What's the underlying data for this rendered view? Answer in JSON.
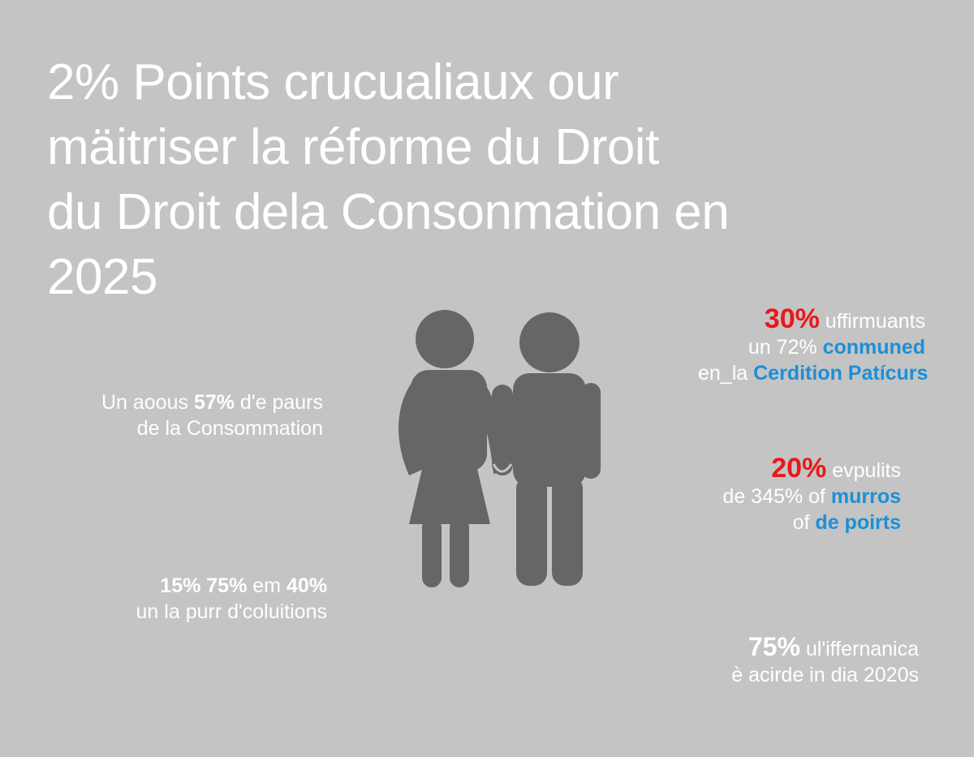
{
  "title": {
    "line1": "2% Points crucualiaux our",
    "line2": "mäitriser la réforme du Droit",
    "line3": "du Droit dela Consonmation en",
    "line4": "2025"
  },
  "stats": {
    "left1": {
      "pre": "Un aoous ",
      "bold": "57%",
      "post": " d'e paurs",
      "line2": "de la Consommation"
    },
    "left2": {
      "bold": "15% 75%",
      "post": " em ",
      "bold2": "40%",
      "line2": "un la purr d'coluitions"
    },
    "right1": {
      "red": "30%",
      "red_post": " uffirmuants",
      "l2_pre": "un 72% ",
      "l2_blue": "conmuned",
      "l3_pre": "en_la ",
      "l3_blue": "Cerdition Patícurs"
    },
    "right2": {
      "red": "20%",
      "red_post": " evpulits",
      "l2_pre": "de 345% ",
      "l2_mid": "of ",
      "l2_blue": "murros",
      "l3_pre": "of ",
      "l3_blue": "de poirts"
    },
    "right3": {
      "bold": "75%",
      "post": " ul'iffernanica",
      "line2": "è acirde in dia 2020s"
    }
  },
  "colors": {
    "background": "#c4c4c4",
    "text": "#ffffff",
    "accent_red": "#e8181c",
    "accent_blue": "#1d8fd6",
    "figure": "#666666"
  },
  "icons": {
    "couple": "couple-pictogram-icon"
  }
}
